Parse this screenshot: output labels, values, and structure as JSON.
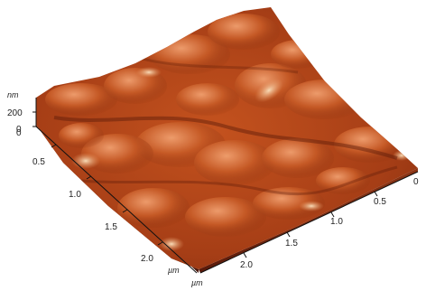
{
  "figure": {
    "z_axis": {
      "unit": "nm",
      "ticks": [
        "200",
        "0"
      ]
    },
    "left_axis": {
      "unit": "µm",
      "ticks": [
        "0",
        "0.5",
        "1.0",
        "1.5",
        "2.0"
      ]
    },
    "right_axis": {
      "unit": "µm",
      "ticks": [
        "0",
        "0.5",
        "1.0",
        "1.5",
        "2.0"
      ]
    },
    "colors": {
      "dark": "#5a1a0a",
      "mid": "#b8461a",
      "light": "#e8925a",
      "highlight": "#f6d7b0"
    }
  }
}
